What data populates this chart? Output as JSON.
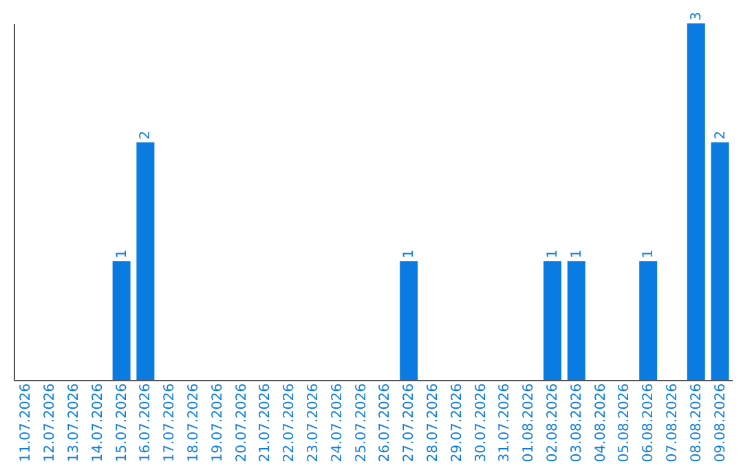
{
  "chart_data": {
    "type": "bar",
    "categories": [
      "11.07.2026",
      "12.07.2026",
      "13.07.2026",
      "14.07.2026",
      "15.07.2026",
      "16.07.2026",
      "17.07.2026",
      "18.07.2026",
      "19.07.2026",
      "20.07.2026",
      "21.07.2026",
      "22.07.2026",
      "23.07.2026",
      "24.07.2026",
      "25.07.2026",
      "26.07.2026",
      "27.07.2026",
      "28.07.2026",
      "29.07.2026",
      "30.07.2026",
      "31.07.2026",
      "01.08.2026",
      "02.08.2026",
      "03.08.2026",
      "04.08.2026",
      "05.08.2026",
      "06.08.2026",
      "07.08.2026",
      "08.08.2026",
      "09.08.2026"
    ],
    "values": [
      0,
      0,
      0,
      0,
      1,
      2,
      0,
      0,
      0,
      0,
      0,
      0,
      0,
      0,
      0,
      0,
      1,
      0,
      0,
      0,
      0,
      0,
      1,
      1,
      0,
      0,
      1,
      0,
      3,
      2
    ],
    "value_labels": [
      null,
      null,
      null,
      null,
      "1",
      "2",
      null,
      null,
      null,
      null,
      null,
      null,
      null,
      null,
      null,
      null,
      "1",
      null,
      null,
      null,
      null,
      null,
      "1",
      "1",
      null,
      null,
      "1",
      null,
      "3",
      "2"
    ],
    "color": "#0a7be0",
    "grid": false,
    "tick_labels": "x"
  }
}
